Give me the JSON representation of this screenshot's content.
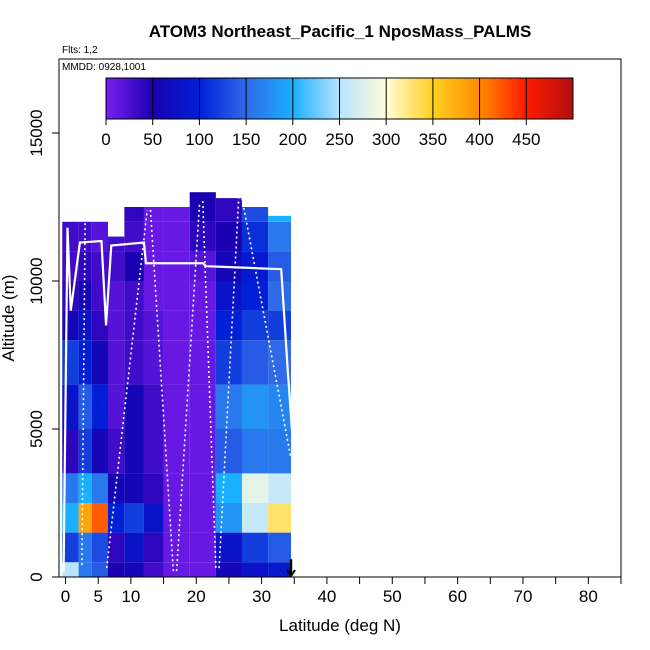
{
  "chart_data": {
    "type": "heatmap",
    "title": "ATOM3 Northeast_Pacific_1 NposMass_PALMS",
    "flights_label": "Flts: 1,2",
    "mmdd_label": "MMDD: 0928,1001",
    "xlabel": "Latitude (deg N)",
    "ylabel": "Altitude (m)",
    "xlim": [
      -1,
      85
    ],
    "ylim": [
      0,
      17500
    ],
    "x_ticks": [
      0,
      5,
      10,
      20,
      30,
      40,
      50,
      60,
      70,
      80
    ],
    "y_ticks": [
      0,
      5000,
      10000,
      15000
    ],
    "y_tick_labels": [
      "0",
      "5000",
      "10000",
      "15000"
    ],
    "colorbar": {
      "min": 0,
      "max": 500,
      "ticks": [
        0,
        50,
        100,
        150,
        200,
        250,
        300,
        350,
        400,
        450
      ],
      "colors": [
        "#7a1ff0",
        "#1a00b0",
        "#0020d8",
        "#2f6ae8",
        "#18b0ff",
        "#b8e4ff",
        "#fffdd8",
        "#ffd020",
        "#ff8a00",
        "#ff1a00",
        "#b01010"
      ]
    },
    "bins": [
      {
        "lat0": -0.5,
        "lat1": 2.0,
        "values": [
          250,
          120,
          200,
          160,
          40,
          80,
          120,
          60,
          40,
          30,
          30,
          20
        ]
      },
      {
        "lat0": 2.0,
        "lat1": 4.0,
        "values": [
          160,
          160,
          380,
          200,
          120,
          140,
          100,
          80,
          60,
          40,
          30,
          20
        ]
      },
      {
        "lat0": 4.0,
        "lat1": 6.5,
        "values": [
          140,
          130,
          420,
          160,
          60,
          100,
          60,
          40,
          30,
          30,
          20,
          20
        ]
      },
      {
        "lat0": 6.5,
        "lat1": 9.0,
        "values": [
          50,
          40,
          100,
          60,
          30,
          20,
          20,
          20,
          20,
          30,
          30,
          30
        ]
      },
      {
        "lat0": 9.0,
        "lat1": 12.0,
        "values": [
          60,
          80,
          120,
          60,
          60,
          60,
          30,
          30,
          30,
          50,
          30,
          40
        ]
      },
      {
        "lat0": 12.0,
        "lat1": 15.0,
        "values": [
          30,
          40,
          80,
          40,
          30,
          30,
          20,
          20,
          10,
          10,
          10,
          10
        ]
      },
      {
        "lat0": 15.0,
        "lat1": 19.0,
        "values": [
          10,
          10,
          10,
          10,
          10,
          10,
          10,
          10,
          10,
          10,
          10,
          10
        ]
      },
      {
        "lat0": 19.0,
        "lat1": 23.0,
        "values": [
          10,
          10,
          10,
          10,
          10,
          10,
          10,
          10,
          10,
          20,
          40,
          50
        ]
      },
      {
        "lat0": 23.0,
        "lat1": 27.0,
        "values": [
          60,
          80,
          180,
          200,
          140,
          160,
          120,
          100,
          80,
          60,
          50,
          40
        ]
      },
      {
        "lat0": 27.0,
        "lat1": 31.0,
        "values": [
          80,
          120,
          260,
          280,
          160,
          180,
          140,
          120,
          100,
          90,
          110,
          130
        ]
      },
      {
        "lat0": 31.0,
        "lat1": 34.5,
        "values": [
          90,
          140,
          330,
          260,
          160,
          170,
          150,
          120,
          150,
          140,
          160,
          200
        ]
      }
    ],
    "alt_bands": [
      [
        0,
        500
      ],
      [
        500,
        1500
      ],
      [
        1500,
        2500
      ],
      [
        2500,
        3500
      ],
      [
        3500,
        5000
      ],
      [
        5000,
        6500
      ],
      [
        6500,
        8000
      ],
      [
        8000,
        9000
      ],
      [
        9000,
        10000
      ],
      [
        10000,
        11000
      ],
      [
        11000,
        12000
      ],
      [
        12000,
        13000
      ]
    ],
    "column_tops": [
      12000,
      12000,
      12000,
      11500,
      12500,
      12500,
      12500,
      13000,
      12800,
      12500,
      12200
    ],
    "flight_track": [
      [
        -0.3,
        150
      ],
      [
        0.3,
        11800
      ],
      [
        0.8,
        9000
      ],
      [
        2.2,
        11300
      ],
      [
        5.5,
        11350
      ],
      [
        6.2,
        8500
      ],
      [
        7.0,
        11200
      ],
      [
        12.0,
        11300
      ],
      [
        12.3,
        10600
      ],
      [
        21.0,
        10600
      ],
      [
        21.5,
        10500
      ],
      [
        33.0,
        10400
      ],
      [
        34.0,
        7000
      ],
      [
        34.8,
        4500
      ]
    ],
    "profile_tracks": [
      [
        [
          2.5,
          400
        ],
        [
          3.0,
          12000
        ]
      ],
      [
        [
          6.3,
          300
        ],
        [
          12.5,
          12400
        ]
      ],
      [
        [
          13.0,
          12400
        ],
        [
          16.5,
          200
        ]
      ],
      [
        [
          17.0,
          200
        ],
        [
          20.5,
          12600
        ]
      ],
      [
        [
          21.0,
          12700
        ],
        [
          23.0,
          300
        ]
      ],
      [
        [
          23.5,
          300
        ],
        [
          26.5,
          12800
        ]
      ],
      [
        [
          27.0,
          12800
        ],
        [
          34.5,
          4000
        ]
      ]
    ],
    "arrow_lat": 34.5
  }
}
